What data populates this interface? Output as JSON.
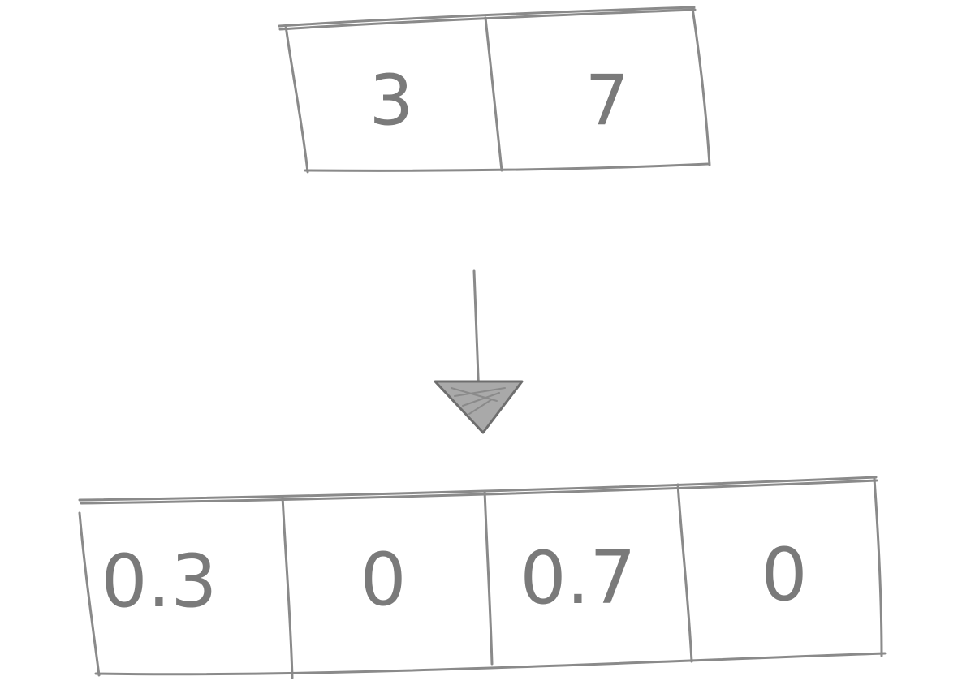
{
  "input_array": {
    "cells": [
      "3",
      "7"
    ]
  },
  "output_array": {
    "cells": [
      "0.3",
      "0",
      "0.7",
      "0"
    ]
  },
  "colors": {
    "pencil": "#8a8a8a",
    "paper": "#ffffff"
  },
  "icons": {
    "transform": "down-arrow-icon"
  }
}
